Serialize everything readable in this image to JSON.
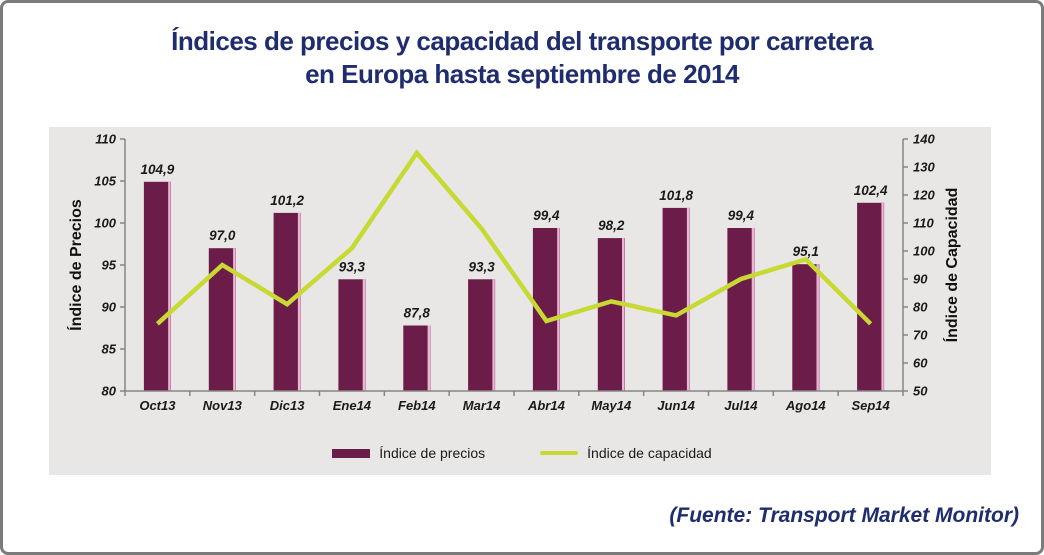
{
  "title": {
    "line1": "Índices de precios y capacidad del transporte por carretera",
    "line2": "en Europa hasta septiembre de 2014"
  },
  "source_note": "(Fuente: Transport Market Monitor)",
  "colors": {
    "title_navy": "#1f2d6e",
    "bar_maroon": "#6b1c48",
    "bar_highlight_pink": "#eeb4d6",
    "line_green": "#c7d932",
    "panel_gray": "#e8e7e5",
    "axis_gray": "#858585",
    "border_gray": "#7b7b7b",
    "label_black": "#1a1a1a"
  },
  "chart_data": {
    "type": "bar+line",
    "categories": [
      "Oct13",
      "Nov13",
      "Dic13",
      "Ene14",
      "Feb14",
      "Mar14",
      "Abr14",
      "May14",
      "Jun14",
      "Jul14",
      "Ago14",
      "Sep14"
    ],
    "series": [
      {
        "name": "Índice de precios",
        "type": "bar",
        "axis": "left",
        "color": "#6b1c48",
        "values": [
          104.9,
          97.0,
          101.2,
          93.3,
          87.8,
          93.3,
          99.4,
          98.2,
          101.8,
          99.4,
          95.1,
          102.4
        ],
        "data_labels": [
          "104,9",
          "97,0",
          "101,2",
          "93,3",
          "87,8",
          "93,3",
          "99,4",
          "98,2",
          "101,8",
          "99,4",
          "95,1",
          "102,4"
        ]
      },
      {
        "name": "Índice de capacidad",
        "type": "line",
        "axis": "right",
        "color": "#c7d932",
        "values": [
          74,
          95,
          81,
          101,
          135,
          108,
          75,
          82,
          77,
          90,
          97,
          74
        ]
      }
    ],
    "left_axis": {
      "title": "Índice de Precios",
      "min": 80,
      "max": 110,
      "step": 5,
      "ticks": [
        80,
        85,
        90,
        95,
        100,
        105,
        110
      ]
    },
    "right_axis": {
      "title": "Índice de Capacidad",
      "min": 50,
      "max": 140,
      "step": 10,
      "ticks": [
        50,
        60,
        70,
        80,
        90,
        100,
        110,
        120,
        130,
        140
      ]
    },
    "legend": [
      {
        "label": "Índice de precios",
        "swatch": "bar"
      },
      {
        "label": "Índice de capacidad",
        "swatch": "line"
      }
    ],
    "legend_position": "bottom-center",
    "grid": false
  }
}
